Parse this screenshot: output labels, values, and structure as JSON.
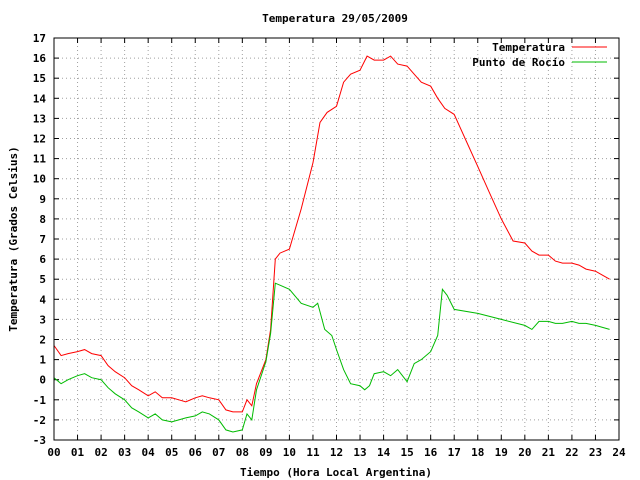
{
  "chart_data": {
    "type": "line",
    "title": "Temperatura 29/05/2009",
    "xlabel": "Tiempo (Hora Local Argentina)",
    "ylabel": "Temperatura (Grados Celsius)",
    "xlim": [
      0,
      24
    ],
    "ylim": [
      -3,
      17
    ],
    "x_ticks": [
      "00",
      "01",
      "02",
      "03",
      "04",
      "05",
      "06",
      "07",
      "08",
      "09",
      "10",
      "11",
      "12",
      "13",
      "14",
      "15",
      "16",
      "17",
      "18",
      "19",
      "20",
      "21",
      "22",
      "23",
      "24"
    ],
    "y_ticks": [
      "-3",
      "-2",
      "-1",
      "0",
      "1",
      "2",
      "3",
      "4",
      "5",
      "6",
      "7",
      "8",
      "9",
      "10",
      "11",
      "12",
      "13",
      "14",
      "15",
      "16",
      "17"
    ],
    "grid": true,
    "legend_position": "top-right",
    "series": [
      {
        "name": "Temperatura",
        "color": "#ff0000",
        "x": [
          0,
          0.3,
          0.6,
          1,
          1.3,
          1.6,
          2,
          2.3,
          2.6,
          3,
          3.3,
          3.6,
          4,
          4.3,
          4.6,
          5,
          5.3,
          5.6,
          6,
          6.3,
          6.6,
          7,
          7.3,
          7.6,
          8,
          8.2,
          8.4,
          8.6,
          9,
          9.2,
          9.4,
          9.6,
          10,
          10.5,
          11,
          11.3,
          11.6,
          12,
          12.3,
          12.6,
          13,
          13.3,
          13.6,
          14,
          14.3,
          14.6,
          15,
          15.3,
          15.6,
          16,
          16.3,
          16.6,
          17,
          17.5,
          18,
          18.5,
          19,
          19.5,
          20,
          20.3,
          20.6,
          21,
          21.3,
          21.6,
          22,
          22.3,
          22.6,
          23,
          23.3,
          23.6
        ],
        "y": [
          1.7,
          1.2,
          1.3,
          1.4,
          1.5,
          1.3,
          1.2,
          0.7,
          0.4,
          0.1,
          -0.3,
          -0.5,
          -0.8,
          -0.6,
          -0.9,
          -0.9,
          -1.0,
          -1.1,
          -0.9,
          -0.8,
          -0.9,
          -1.0,
          -1.5,
          -1.6,
          -1.6,
          -1.0,
          -1.3,
          -0.2,
          1.0,
          2.5,
          6.0,
          6.3,
          6.5,
          8.5,
          10.8,
          12.8,
          13.3,
          13.6,
          14.8,
          15.2,
          15.4,
          16.1,
          15.9,
          15.9,
          16.1,
          15.7,
          15.6,
          15.2,
          14.8,
          14.6,
          14.0,
          13.5,
          13.2,
          11.9,
          10.6,
          9.3,
          8.0,
          6.9,
          6.8,
          6.4,
          6.2,
          6.2,
          5.9,
          5.8,
          5.8,
          5.7,
          5.5,
          5.4,
          5.2,
          5.0
        ]
      },
      {
        "name": "Punto de Rocío",
        "color": "#00bb00",
        "x": [
          0,
          0.3,
          0.6,
          1,
          1.3,
          1.6,
          2,
          2.3,
          2.6,
          3,
          3.3,
          3.6,
          4,
          4.3,
          4.6,
          5,
          5.3,
          5.6,
          6,
          6.3,
          6.6,
          7,
          7.3,
          7.6,
          8,
          8.2,
          8.4,
          8.6,
          9,
          9.2,
          9.4,
          9.6,
          10,
          10.5,
          11,
          11.2,
          11.5,
          11.8,
          12,
          12.3,
          12.6,
          13,
          13.2,
          13.4,
          13.6,
          14,
          14.3,
          14.6,
          15,
          15.3,
          15.6,
          16,
          16.3,
          16.5,
          16.7,
          17,
          18,
          19,
          20,
          20.3,
          20.6,
          21,
          21.3,
          21.6,
          22,
          22.3,
          22.6,
          23,
          23.3,
          23.6
        ],
        "y": [
          0.1,
          -0.2,
          0.0,
          0.2,
          0.3,
          0.1,
          0.0,
          -0.4,
          -0.7,
          -1.0,
          -1.4,
          -1.6,
          -1.9,
          -1.7,
          -2.0,
          -2.1,
          -2.0,
          -1.9,
          -1.8,
          -1.6,
          -1.7,
          -2.0,
          -2.5,
          -2.6,
          -2.5,
          -1.7,
          -2.0,
          -0.5,
          0.9,
          2.3,
          4.8,
          4.7,
          4.5,
          3.8,
          3.6,
          3.8,
          2.5,
          2.2,
          1.5,
          0.5,
          -0.2,
          -0.3,
          -0.5,
          -0.3,
          0.3,
          0.4,
          0.2,
          0.5,
          -0.1,
          0.8,
          1.0,
          1.4,
          2.2,
          4.5,
          4.2,
          3.5,
          3.3,
          3.0,
          2.7,
          2.5,
          2.9,
          2.9,
          2.8,
          2.8,
          2.9,
          2.8,
          2.8,
          2.7,
          2.6,
          2.5
        ]
      }
    ]
  }
}
